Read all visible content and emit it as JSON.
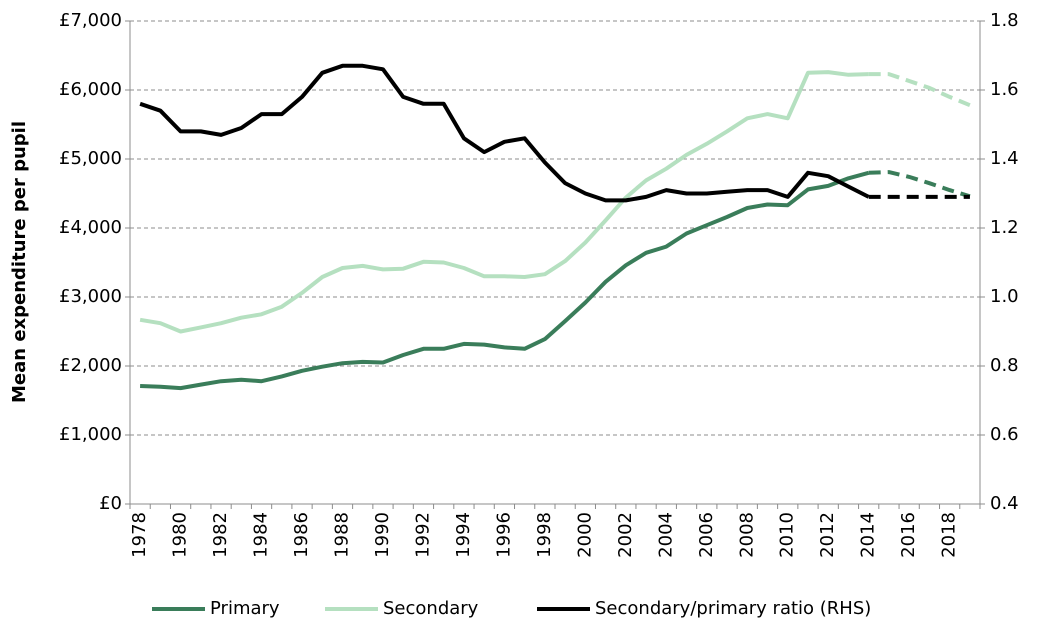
{
  "chart_data": {
    "type": "line",
    "y_label": "Mean expenditure per pupil",
    "categories": [
      "1978",
      null,
      "1980",
      null,
      "1982",
      null,
      "1984",
      null,
      "1986",
      null,
      "1988",
      null,
      "1990",
      null,
      "1992",
      null,
      "1994",
      null,
      "1996",
      null,
      "1998",
      null,
      "2000",
      null,
      "2002",
      null,
      "2004",
      null,
      "2006",
      null,
      "2008",
      null,
      "2010",
      null,
      "2012",
      null,
      "2014",
      null,
      "2016",
      null,
      "2018",
      null
    ],
    "ylim": [
      0,
      7000
    ],
    "yticks": [
      {
        "value": 0,
        "label": "£0"
      },
      {
        "value": 1000,
        "label": "£1,000"
      },
      {
        "value": 2000,
        "label": "£2,000"
      },
      {
        "value": 3000,
        "label": "£3,000"
      },
      {
        "value": 4000,
        "label": "£4,000"
      },
      {
        "value": 5000,
        "label": "£5,000"
      },
      {
        "value": 6000,
        "label": "£6,000"
      },
      {
        "value": 7000,
        "label": "£7,000"
      }
    ],
    "y2lim": [
      0.4,
      1.8
    ],
    "y2ticks": [
      0.4,
      0.6,
      0.8,
      {
        "value": 1,
        "label": "1.0"
      },
      1.2,
      1.4,
      1.6,
      1.8
    ],
    "grid": true,
    "legend": "bottom",
    "series": [
      {
        "name": "Primary",
        "color": "#3a7d5a",
        "values": [
          1710,
          1700,
          1680,
          1730,
          1780,
          1800,
          1780,
          1850,
          1930,
          1990,
          2040,
          2060,
          2050,
          2160,
          2250,
          2250,
          2320,
          2310,
          2270,
          2250,
          2390,
          2650,
          2920,
          3220,
          3460,
          3640,
          3730,
          3920,
          4040,
          4160,
          4290,
          4340,
          4330,
          4560,
          4610,
          4720,
          4800,
          null,
          null,
          null,
          null,
          null
        ],
        "projection": [
          null,
          null,
          null,
          null,
          null,
          null,
          null,
          null,
          null,
          null,
          null,
          null,
          null,
          null,
          null,
          null,
          null,
          null,
          null,
          null,
          null,
          null,
          null,
          null,
          null,
          null,
          null,
          null,
          null,
          null,
          null,
          null,
          null,
          null,
          null,
          null,
          4800,
          4810,
          4740,
          4650,
          4550,
          4460
        ]
      },
      {
        "name": "Secondary",
        "color": "#b5e0c0",
        "values": [
          2670,
          2620,
          2500,
          2560,
          2620,
          2700,
          2750,
          2860,
          3060,
          3290,
          3420,
          3450,
          3400,
          3410,
          3510,
          3500,
          3420,
          3300,
          3300,
          3290,
          3330,
          3520,
          3790,
          4110,
          4440,
          4690,
          4860,
          5060,
          5220,
          5400,
          5590,
          5650,
          5590,
          6250,
          6260,
          6220,
          6230,
          null,
          null,
          null,
          null,
          null
        ],
        "projection": [
          null,
          null,
          null,
          null,
          null,
          null,
          null,
          null,
          null,
          null,
          null,
          null,
          null,
          null,
          null,
          null,
          null,
          null,
          null,
          null,
          null,
          null,
          null,
          null,
          null,
          null,
          null,
          null,
          null,
          null,
          null,
          null,
          null,
          null,
          null,
          null,
          6230,
          6230,
          6130,
          6030,
          5900,
          5780
        ]
      },
      {
        "name": "Secondary/primary ratio (RHS)",
        "color": "#000000",
        "axis": "y2",
        "values": [
          1.56,
          1.54,
          1.48,
          1.48,
          1.47,
          1.49,
          1.53,
          1.53,
          1.58,
          1.65,
          1.67,
          1.67,
          1.66,
          1.58,
          1.56,
          1.56,
          1.46,
          1.42,
          1.45,
          1.46,
          1.39,
          1.33,
          1.3,
          1.28,
          1.28,
          1.29,
          1.31,
          1.3,
          1.3,
          1.305,
          1.31,
          1.31,
          1.29,
          1.36,
          1.35,
          1.32,
          1.29,
          null,
          null,
          null,
          null,
          null
        ],
        "projection": [
          null,
          null,
          null,
          null,
          null,
          null,
          null,
          null,
          null,
          null,
          null,
          null,
          null,
          null,
          null,
          null,
          null,
          null,
          null,
          null,
          null,
          null,
          null,
          null,
          null,
          null,
          null,
          null,
          null,
          null,
          null,
          null,
          null,
          null,
          null,
          null,
          1.29,
          1.29,
          1.29,
          1.29,
          1.29,
          1.29
        ]
      }
    ]
  }
}
